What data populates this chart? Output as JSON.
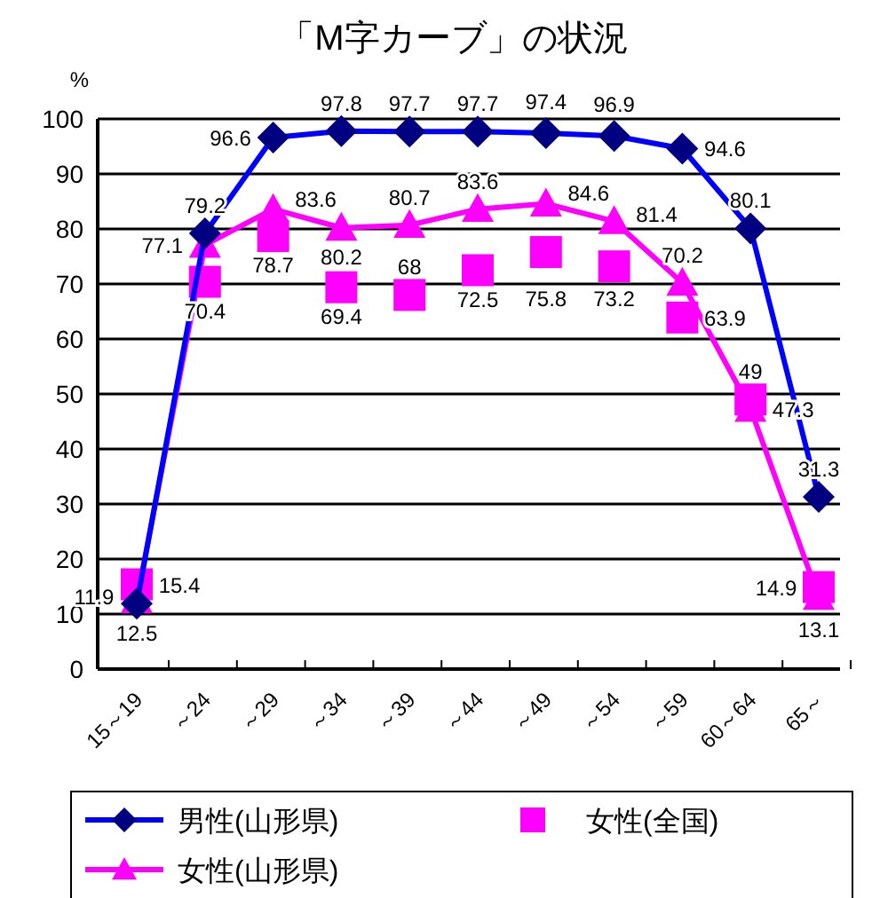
{
  "chart_data": {
    "type": "line",
    "title": "「M字カーブ」の状況",
    "ylabel": "%",
    "categories": [
      "15～19",
      "～24",
      "～29",
      "～34",
      "～39",
      "～44",
      "～49",
      "～54",
      "～59",
      "60～64",
      "65～"
    ],
    "ylim": [
      0,
      100
    ],
    "yticks": [
      0,
      10,
      20,
      30,
      40,
      50,
      60,
      70,
      80,
      90,
      100
    ],
    "grid": "y",
    "legend": "bottom",
    "data_labels": true,
    "series": [
      {
        "name": "男性(山形県)",
        "color": "#0000ff",
        "marker": "diamond",
        "values": [
          11.9,
          79.2,
          96.6,
          97.8,
          97.7,
          97.7,
          97.4,
          96.9,
          94.6,
          80.1,
          31.3
        ]
      },
      {
        "name": "女性(全国)",
        "type": "scatter",
        "color": "#ff00ff",
        "marker": "square",
        "values": [
          15.4,
          70.4,
          78.7,
          69.4,
          68,
          72.5,
          75.8,
          73.2,
          63.9,
          49,
          14.9
        ]
      },
      {
        "name": "女性(山形県)",
        "color": "#ff00ff",
        "marker": "triangle",
        "values": [
          12.5,
          77.1,
          83.6,
          80.2,
          80.7,
          83.6,
          84.6,
          81.4,
          70.2,
          47.3,
          13.1
        ]
      }
    ]
  }
}
